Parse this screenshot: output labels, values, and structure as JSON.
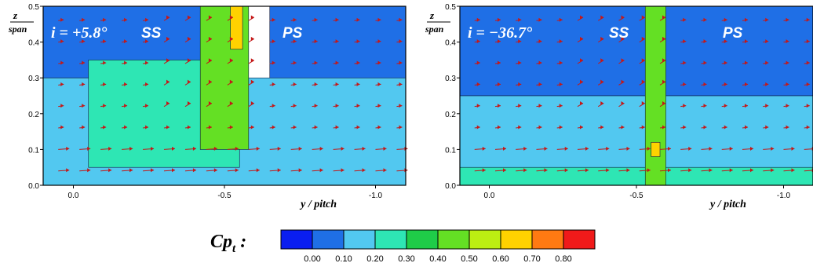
{
  "chart_data": [
    {
      "type": "heatmap",
      "quantity": "Cp_t",
      "incidence_label": "i = +5.8°",
      "ss_label": "SS",
      "ps_label": "PS",
      "xlabel": "y / pitch",
      "ylabel_numerator": "z",
      "ylabel_denominator": "span",
      "x_ticks": [
        "0.0",
        "-0.5",
        "-1.0"
      ],
      "x_tick_values": [
        0.0,
        -0.5,
        -1.0
      ],
      "y_ticks": [
        "0.0",
        "0.1",
        "0.2",
        "0.3",
        "0.4",
        "0.5"
      ],
      "y_tick_values": [
        0.0,
        0.1,
        0.2,
        0.3,
        0.4,
        0.5
      ],
      "xlim": [
        0.1,
        -1.1
      ],
      "ylim": [
        0.0,
        0.5
      ],
      "vectors": "secondary velocity vectors (red)",
      "regions": [
        {
          "level": 0.05,
          "desc": "free stream, upper-left",
          "x_range": [
            0.1,
            -0.55
          ],
          "z_range": [
            0.3,
            0.5
          ]
        },
        {
          "level": 0.05,
          "desc": "free stream, pressure side",
          "x_range": [
            -0.65,
            -1.1
          ],
          "z_range": [
            0.1,
            0.5
          ]
        },
        {
          "level": 0.15,
          "desc": "near-wall band",
          "x_range": [
            0.1,
            -1.1
          ],
          "z_range": [
            0.0,
            0.3
          ]
        },
        {
          "level": 0.25,
          "desc": "passage vortex region",
          "x_range": [
            -0.05,
            -0.55
          ],
          "z_range": [
            0.05,
            0.35
          ]
        },
        {
          "level": 0.45,
          "desc": "wake core",
          "x_range": [
            -0.42,
            -0.58
          ],
          "z_range": [
            0.1,
            0.5
          ]
        },
        {
          "level": 0.65,
          "desc": "wake peak",
          "x_range": [
            -0.52,
            -0.56
          ],
          "z_range": [
            0.38,
            0.5
          ]
        }
      ]
    },
    {
      "type": "heatmap",
      "quantity": "Cp_t",
      "incidence_label": "i = −36.7°",
      "ss_label": "SS",
      "ps_label": "PS",
      "xlabel": "y / pitch",
      "ylabel_numerator": "z",
      "ylabel_denominator": "span",
      "x_ticks": [
        "0.0",
        "-0.5",
        "-1.0"
      ],
      "x_tick_values": [
        0.0,
        -0.5,
        -1.0
      ],
      "y_ticks": [
        "0.0",
        "0.1",
        "0.2",
        "0.3",
        "0.4",
        "0.5"
      ],
      "y_tick_values": [
        0.0,
        0.1,
        0.2,
        0.3,
        0.4,
        0.5
      ],
      "xlim": [
        0.1,
        -1.1
      ],
      "ylim": [
        0.0,
        0.5
      ],
      "vectors": "secondary velocity vectors (red)",
      "regions": [
        {
          "level": 0.05,
          "desc": "free stream",
          "x_range": [
            0.1,
            -1.1
          ],
          "z_range": [
            0.25,
            0.5
          ]
        },
        {
          "level": 0.15,
          "desc": "lower band",
          "x_range": [
            0.1,
            -1.1
          ],
          "z_range": [
            0.0,
            0.25
          ]
        },
        {
          "level": 0.25,
          "desc": "endwall layer",
          "x_range": [
            0.1,
            -1.1
          ],
          "z_range": [
            0.0,
            0.05
          ]
        },
        {
          "level": 0.45,
          "desc": "narrow wake",
          "x_range": [
            -0.53,
            -0.6
          ],
          "z_range": [
            0.0,
            0.5
          ]
        },
        {
          "level": 0.65,
          "desc": "wake spot",
          "x_range": [
            -0.55,
            -0.58
          ],
          "z_range": [
            0.08,
            0.12
          ]
        }
      ]
    }
  ],
  "colorbar": {
    "label": "Cpt :",
    "ticks": [
      "0.00",
      "0.10",
      "0.20",
      "0.30",
      "0.40",
      "0.50",
      "0.60",
      "0.70",
      "0.80"
    ],
    "colors": [
      "#0a1ef0",
      "#1f6fe6",
      "#52c8f0",
      "#2ee6b4",
      "#1fcc48",
      "#64e024",
      "#bcee12",
      "#ffd200",
      "#ff7a12",
      "#f01a1a"
    ]
  }
}
